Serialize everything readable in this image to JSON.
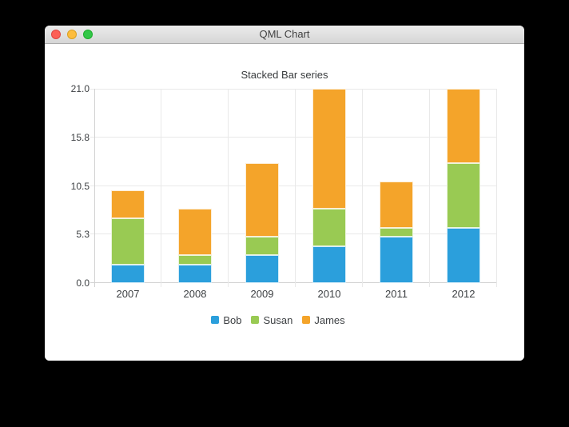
{
  "window": {
    "title": "QML Chart",
    "traffic_lights": [
      {
        "name": "close",
        "color": "#fc5f56"
      },
      {
        "name": "minimize",
        "color": "#fdbd3e"
      },
      {
        "name": "zoom",
        "color": "#33c748"
      }
    ]
  },
  "chart_data": {
    "type": "bar",
    "stacked": true,
    "title": "Stacked Bar series",
    "categories": [
      "2007",
      "2008",
      "2009",
      "2010",
      "2011",
      "2012"
    ],
    "series": [
      {
        "name": "Bob",
        "color": "#2b9fdc",
        "values": [
          2,
          2,
          3,
          4,
          5,
          6
        ]
      },
      {
        "name": "Susan",
        "color": "#99ca53",
        "values": [
          5,
          1,
          2,
          4,
          1,
          7
        ]
      },
      {
        "name": "James",
        "color": "#f4a42a",
        "values": [
          3,
          5,
          8,
          13,
          5,
          8
        ]
      }
    ],
    "totals": [
      10,
      8,
      13,
      21,
      11,
      21
    ],
    "ylim": [
      0,
      21
    ],
    "yticks": [
      {
        "label": "0.0",
        "value": 0
      },
      {
        "label": "5.3",
        "value": 5.25
      },
      {
        "label": "10.5",
        "value": 10.5
      },
      {
        "label": "15.8",
        "value": 15.75
      },
      {
        "label": "21.0",
        "value": 21
      }
    ],
    "grid": true,
    "legend_position": "bottom"
  },
  "colors": {
    "grid": "#e9e9e9",
    "axis": "#d2d2d2",
    "label": "#3d4043",
    "bar_border": "rgba(255,255,255,0.8)"
  }
}
